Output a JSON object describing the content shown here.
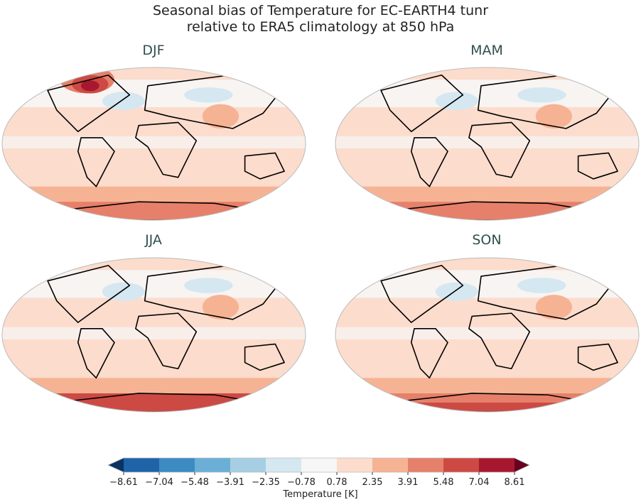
{
  "title_line1": "Seasonal bias of Temperature for EC-EARTH4 tunr",
  "title_line2": "relative to ERA5 climatology at 850 hPa",
  "panels": [
    {
      "season": "DJF"
    },
    {
      "season": "MAM"
    },
    {
      "season": "JJA"
    },
    {
      "season": "SON"
    }
  ],
  "colorbar": {
    "label": "Temperature [K]",
    "ticks": [
      "−8.61",
      "−7.04",
      "−5.48",
      "−3.91",
      "−2.35",
      "−0.78",
      "0.78",
      "2.35",
      "3.91",
      "5.48",
      "7.04",
      "8.61"
    ],
    "colors": [
      "#1f63a8",
      "#3c8bc3",
      "#6bafd6",
      "#a6cfe4",
      "#d5e7f1",
      "#f6f6f6",
      "#fcdccc",
      "#f6b394",
      "#e6806a",
      "#cc4a43",
      "#a71830"
    ],
    "under_color": "#0b3263",
    "over_color": "#67001f",
    "extend": "both"
  }
}
